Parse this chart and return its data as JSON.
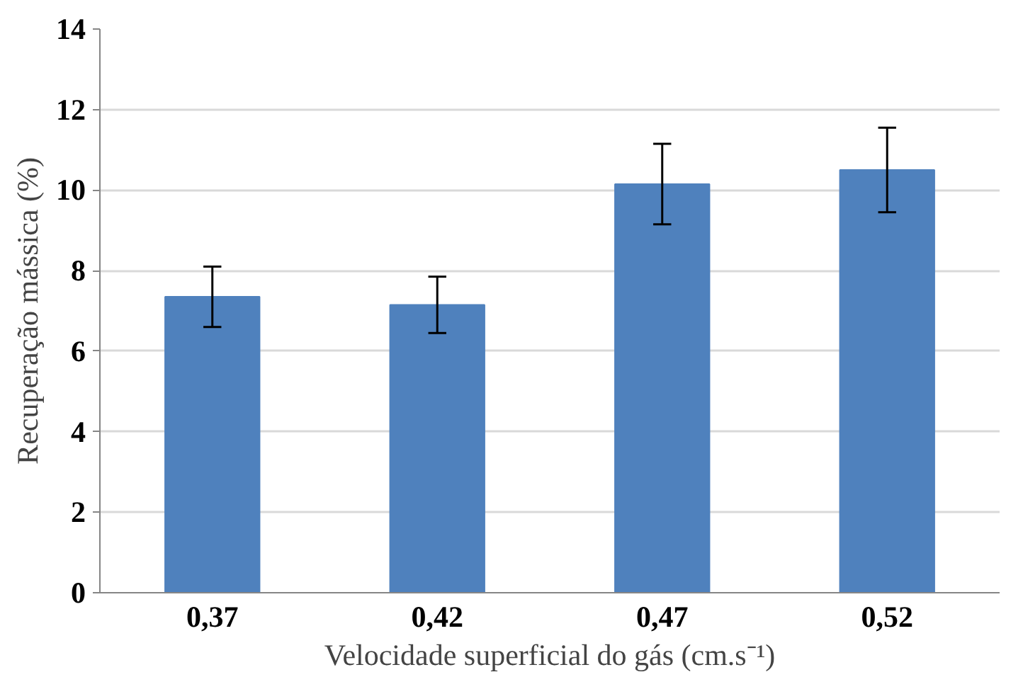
{
  "chart_data": {
    "type": "bar",
    "xlabel": "Velocidade superficial do gás (cm.s⁻¹)",
    "ylabel": "Recuperação mássica (%)",
    "categories": [
      "0,37",
      "0,42",
      "0,47",
      "0,52"
    ],
    "values": [
      7.35,
      7.15,
      10.15,
      10.5
    ],
    "errors": [
      0.75,
      0.7,
      1.0,
      1.05
    ],
    "color": "#4f81bd",
    "ylim": [
      0,
      14
    ],
    "yticks": [
      0,
      2,
      4,
      6,
      8,
      10,
      12,
      14
    ],
    "grid": "y"
  }
}
